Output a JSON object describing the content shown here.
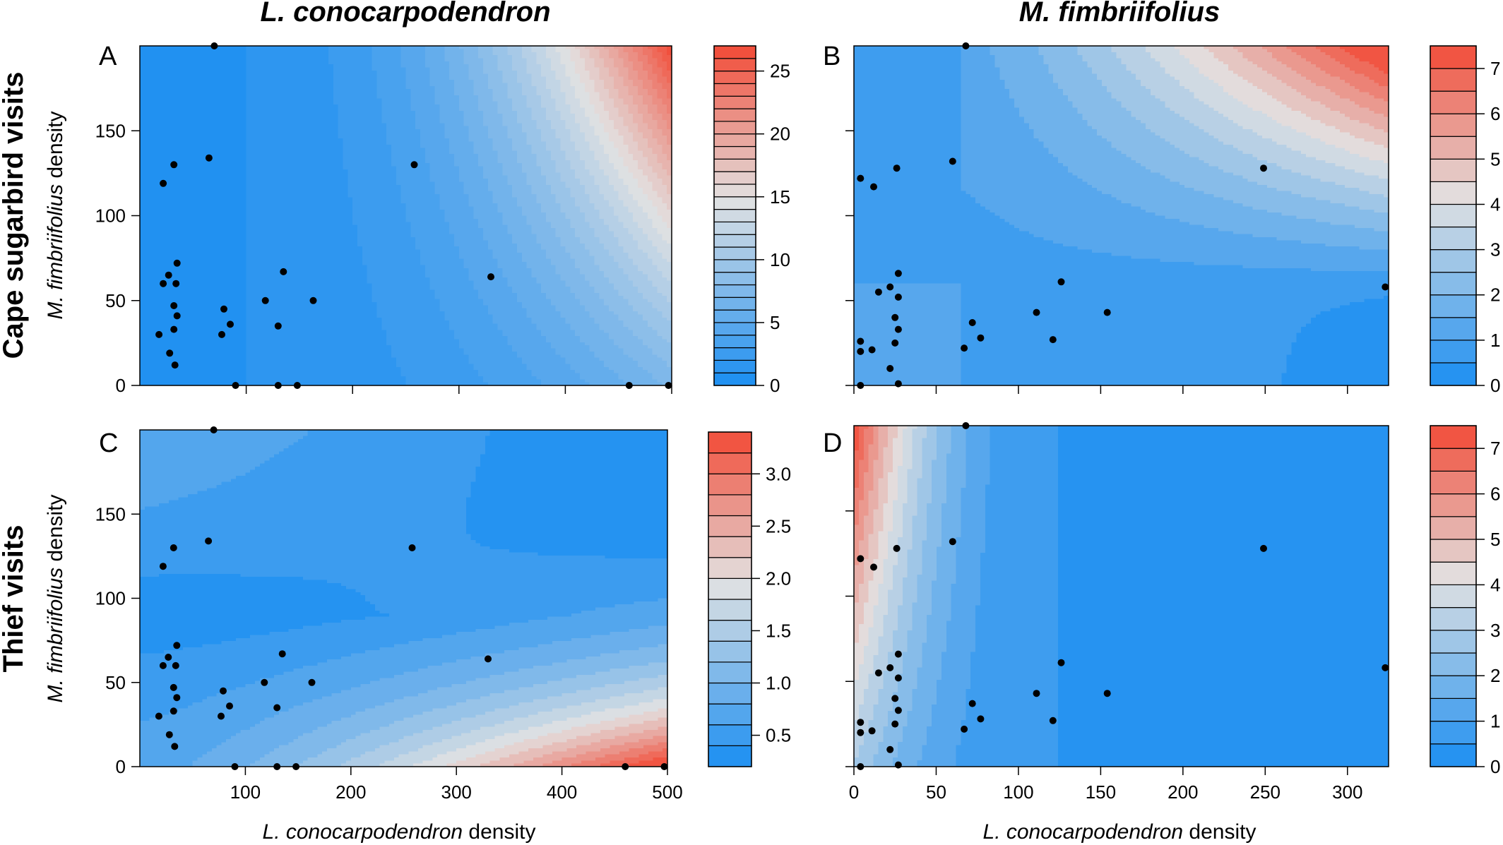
{
  "figure": {
    "col_titles": [
      "L. conocarpodendron",
      "M. fimbriifolius"
    ],
    "row_titles": [
      "Cape sugarbird visits",
      "Thief visits"
    ],
    "axis_label_x": {
      "italic": "L. conocarpodendron",
      "plain": " density"
    },
    "axis_label_y": {
      "italic": "M. fimbriifolius",
      "plain": " density"
    }
  },
  "colors": {
    "low": "#1a8ef2",
    "mid": "#e2e2e2",
    "high": "#f24a36",
    "point": "#000000"
  },
  "chart_data": [
    {
      "type": "heatmap",
      "panel": "A",
      "row": "Cape sugarbird visits",
      "column": "L. conocarpodendron",
      "xlim": [
        0,
        500
      ],
      "ylim": [
        0,
        200
      ],
      "x_ticks": [
        100,
        200,
        300,
        400,
        500
      ],
      "x_tick_labels": [],
      "y_ticks": [
        0,
        50,
        100,
        150
      ],
      "y_tick_labels": [
        "0",
        "50",
        "100",
        "150"
      ],
      "colorbar": {
        "min": 0,
        "max": 27,
        "levels": 27,
        "ticks": [
          0,
          5,
          10,
          15,
          20,
          25
        ],
        "tick_labels": [
          "0",
          "5",
          "10",
          "15",
          "20",
          "25"
        ]
      },
      "surface": "cape_lc",
      "points": [
        [
          70,
          200
        ],
        [
          22,
          119
        ],
        [
          32,
          130
        ],
        [
          65,
          134
        ],
        [
          258,
          130
        ],
        [
          22,
          60
        ],
        [
          27,
          65
        ],
        [
          34,
          60
        ],
        [
          35,
          72
        ],
        [
          32,
          47
        ],
        [
          35,
          41
        ],
        [
          32,
          33
        ],
        [
          28,
          19
        ],
        [
          33,
          12
        ],
        [
          18,
          30
        ],
        [
          77,
          30
        ],
        [
          79,
          45
        ],
        [
          85,
          36
        ],
        [
          118,
          50
        ],
        [
          135,
          67
        ],
        [
          130,
          35
        ],
        [
          163,
          50
        ],
        [
          330,
          64
        ],
        [
          90,
          0
        ],
        [
          130,
          0
        ],
        [
          148,
          0
        ],
        [
          460,
          0
        ],
        [
          497,
          0
        ]
      ]
    },
    {
      "type": "heatmap",
      "panel": "B",
      "row": "Cape sugarbird visits",
      "column": "M. fimbriifolius",
      "xlim": [
        0,
        325
      ],
      "ylim": [
        0,
        200
      ],
      "x_ticks": [
        0,
        50,
        100,
        150,
        200,
        250,
        300
      ],
      "x_tick_labels": [],
      "y_ticks": [
        0,
        50,
        100,
        150
      ],
      "y_tick_labels": [],
      "colorbar": {
        "min": 0,
        "max": 7.5,
        "levels": 15,
        "ticks": [
          0,
          1,
          2,
          3,
          4,
          5,
          6,
          7
        ],
        "tick_labels": [
          "0",
          "1",
          "2",
          "3",
          "4",
          "5",
          "6",
          "7"
        ]
      },
      "surface": "cape_mf",
      "points": [
        [
          68,
          200
        ],
        [
          4,
          122
        ],
        [
          12,
          117
        ],
        [
          26,
          128
        ],
        [
          60,
          132
        ],
        [
          249,
          128
        ],
        [
          15,
          55
        ],
        [
          22,
          58
        ],
        [
          27,
          66
        ],
        [
          27,
          52
        ],
        [
          25,
          40
        ],
        [
          27,
          33
        ],
        [
          25,
          25
        ],
        [
          4,
          26
        ],
        [
          4,
          20
        ],
        [
          11,
          21
        ],
        [
          22,
          10
        ],
        [
          27,
          1
        ],
        [
          4,
          0
        ],
        [
          67,
          22
        ],
        [
          72,
          37
        ],
        [
          77,
          28
        ],
        [
          111,
          43
        ],
        [
          121,
          27
        ],
        [
          126,
          61
        ],
        [
          154,
          43
        ],
        [
          323,
          58
        ]
      ]
    },
    {
      "type": "heatmap",
      "panel": "C",
      "row": "Thief visits",
      "column": "L. conocarpodendron",
      "xlim": [
        0,
        500
      ],
      "ylim": [
        0,
        200
      ],
      "x_ticks": [
        100,
        200,
        300,
        400,
        500
      ],
      "x_tick_labels": [
        "100",
        "200",
        "300",
        "400",
        "500"
      ],
      "y_ticks": [
        0,
        50,
        100,
        150
      ],
      "y_tick_labels": [
        "0",
        "50",
        "100",
        "150"
      ],
      "colorbar": {
        "min": 0.2,
        "max": 3.4,
        "levels": 16,
        "ticks": [
          0.5,
          1.0,
          1.5,
          2.0,
          2.5,
          3.0
        ],
        "tick_labels": [
          "0.5",
          "1.0",
          "1.5",
          "2.0",
          "2.5",
          "3.0"
        ]
      },
      "surface": "thief_lc",
      "points": [
        [
          70,
          200
        ],
        [
          22,
          119
        ],
        [
          32,
          130
        ],
        [
          65,
          134
        ],
        [
          258,
          130
        ],
        [
          22,
          60
        ],
        [
          27,
          65
        ],
        [
          34,
          60
        ],
        [
          35,
          72
        ],
        [
          32,
          47
        ],
        [
          35,
          41
        ],
        [
          32,
          33
        ],
        [
          28,
          19
        ],
        [
          33,
          12
        ],
        [
          18,
          30
        ],
        [
          77,
          30
        ],
        [
          79,
          45
        ],
        [
          85,
          36
        ],
        [
          118,
          50
        ],
        [
          135,
          67
        ],
        [
          130,
          35
        ],
        [
          163,
          50
        ],
        [
          330,
          64
        ],
        [
          90,
          0
        ],
        [
          130,
          0
        ],
        [
          148,
          0
        ],
        [
          460,
          0
        ],
        [
          497,
          0
        ]
      ]
    },
    {
      "type": "heatmap",
      "panel": "D",
      "row": "Thief visits",
      "column": "M. fimbriifolius",
      "xlim": [
        0,
        325
      ],
      "ylim": [
        0,
        200
      ],
      "x_ticks": [
        0,
        50,
        100,
        150,
        200,
        250,
        300
      ],
      "x_tick_labels": [
        "0",
        "50",
        "100",
        "150",
        "200",
        "250",
        "300"
      ],
      "y_ticks": [
        0,
        50,
        100,
        150
      ],
      "y_tick_labels": [],
      "colorbar": {
        "min": 0,
        "max": 7.5,
        "levels": 15,
        "ticks": [
          0,
          1,
          2,
          3,
          4,
          5,
          6,
          7
        ],
        "tick_labels": [
          "0",
          "1",
          "2",
          "3",
          "4",
          "5",
          "6",
          "7"
        ]
      },
      "surface": "thief_mf",
      "points": [
        [
          68,
          200
        ],
        [
          4,
          122
        ],
        [
          12,
          117
        ],
        [
          26,
          128
        ],
        [
          60,
          132
        ],
        [
          249,
          128
        ],
        [
          15,
          55
        ],
        [
          22,
          58
        ],
        [
          27,
          66
        ],
        [
          27,
          52
        ],
        [
          25,
          40
        ],
        [
          27,
          33
        ],
        [
          25,
          25
        ],
        [
          4,
          26
        ],
        [
          4,
          20
        ],
        [
          11,
          21
        ],
        [
          22,
          10
        ],
        [
          27,
          1
        ],
        [
          4,
          0
        ],
        [
          67,
          22
        ],
        [
          72,
          37
        ],
        [
          77,
          28
        ],
        [
          111,
          43
        ],
        [
          121,
          27
        ],
        [
          126,
          61
        ],
        [
          154,
          43
        ],
        [
          323,
          58
        ]
      ]
    }
  ]
}
